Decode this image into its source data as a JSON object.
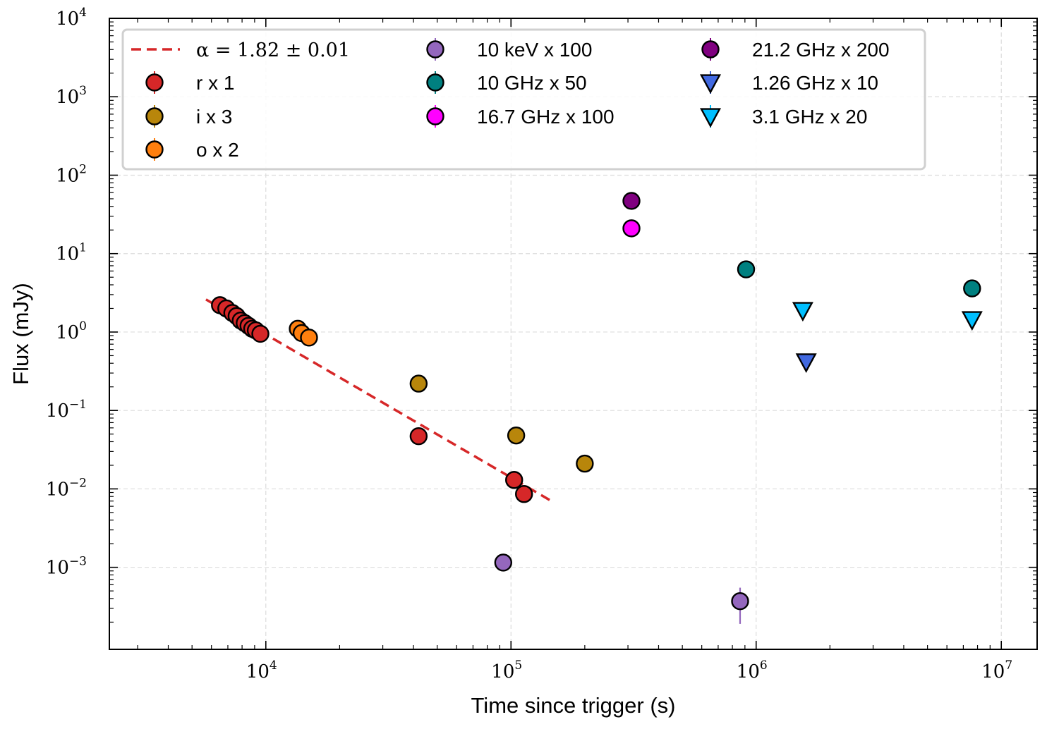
{
  "chart_data": {
    "type": "scatter",
    "xlabel": "Time since trigger (s)",
    "ylabel": "Flux (mJy)",
    "xscale": "log",
    "yscale": "log",
    "xlim": [
      2300,
      14000000
    ],
    "ylim": [
      9e-05,
      10000
    ],
    "grid": true,
    "legend_position": "top-left",
    "x_ticks": [
      {
        "value": 10000,
        "base": "10",
        "exp": "4"
      },
      {
        "value": 100000,
        "base": "10",
        "exp": "5"
      },
      {
        "value": 1000000,
        "base": "10",
        "exp": "6"
      },
      {
        "value": 10000000,
        "base": "10",
        "exp": "7"
      }
    ],
    "y_ticks": [
      {
        "value": 0.001,
        "base": "10",
        "exp": "−3"
      },
      {
        "value": 0.01,
        "base": "10",
        "exp": "−2"
      },
      {
        "value": 0.1,
        "base": "10",
        "exp": "−1"
      },
      {
        "value": 1,
        "base": "10",
        "exp": "0"
      },
      {
        "value": 10,
        "base": "10",
        "exp": "1"
      },
      {
        "value": 100,
        "base": "10",
        "exp": "2"
      },
      {
        "value": 1000,
        "base": "10",
        "exp": "3"
      },
      {
        "value": 10000,
        "base": "10",
        "exp": "4"
      }
    ],
    "fit": {
      "label": "α = 1.82 ± 0.01",
      "color": "#d62728",
      "style": "dashed",
      "points": [
        [
          5700,
          2.6
        ],
        [
          145000,
          0.0071
        ]
      ]
    },
    "series": [
      {
        "name": "r x 1",
        "marker": "circle",
        "color": "#d62728",
        "points": [
          [
            6500,
            2.2
          ],
          [
            6900,
            2.0
          ],
          [
            7300,
            1.75
          ],
          [
            7600,
            1.6
          ],
          [
            7900,
            1.4
          ],
          [
            8200,
            1.3
          ],
          [
            8500,
            1.2
          ],
          [
            8800,
            1.1
          ],
          [
            9100,
            1.05
          ],
          [
            9500,
            0.95
          ],
          [
            42000,
            0.047
          ],
          [
            103000,
            0.013
          ],
          [
            113000,
            0.0086
          ]
        ]
      },
      {
        "name": "i x 3",
        "marker": "circle",
        "color": "#b8860b",
        "points": [
          [
            42000,
            0.22
          ],
          [
            105000,
            0.048
          ],
          [
            200000,
            0.021
          ]
        ]
      },
      {
        "name": "o x 2",
        "marker": "circle",
        "color": "#ff7f0e",
        "points": [
          [
            13500,
            1.1
          ],
          [
            14000,
            0.97
          ],
          [
            15000,
            0.85
          ]
        ]
      },
      {
        "name": "10 keV x 100",
        "marker": "circle",
        "color": "#9467bd",
        "points": [
          [
            93000,
            0.00115
          ],
          [
            860000,
            0.00037
          ]
        ],
        "error_bars": [
          null,
          [
            0.00019,
            0.00055
          ]
        ]
      },
      {
        "name": "10 GHz x 50",
        "marker": "circle",
        "color": "#008080",
        "points": [
          [
            910000,
            6.3
          ],
          [
            7600000,
            3.6
          ]
        ]
      },
      {
        "name": "16.7 GHz x 100",
        "marker": "circle",
        "color": "#ff00ff",
        "points": [
          [
            310000,
            21
          ]
        ]
      },
      {
        "name": "21.2 GHz x 200",
        "marker": "circle",
        "color": "#800080",
        "points": [
          [
            310000,
            47
          ]
        ]
      },
      {
        "name": "1.26 GHz x 10",
        "marker": "triangle-down",
        "color": "#4169e1",
        "points": [
          [
            1600000,
            0.42
          ]
        ]
      },
      {
        "name": "3.1 GHz x 20",
        "marker": "triangle-down",
        "color": "#00bfff",
        "points": [
          [
            1550000,
            1.9
          ],
          [
            7600000,
            1.45
          ]
        ]
      }
    ]
  }
}
